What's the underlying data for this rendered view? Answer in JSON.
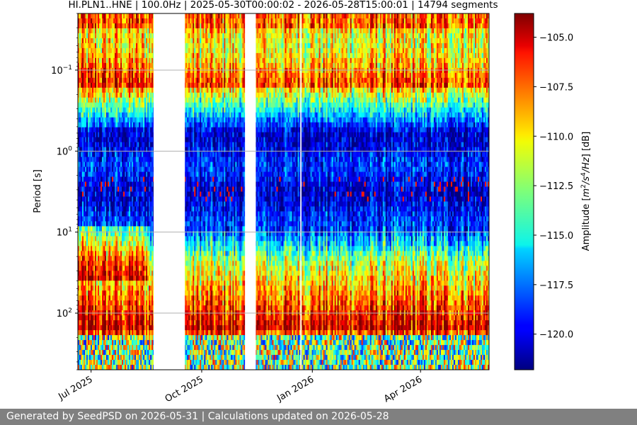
{
  "chart_data": {
    "type": "heatmap",
    "title": "HI.PLN1..HNE | 100.0Hz | 2025-05-30T00:00:02 - 2026-05-28T15:00:01 | 14794 segments",
    "ylabel": "Period [s]",
    "yscale": "log",
    "yaxis_inverted": true,
    "ylim": [
      0.02,
      500
    ],
    "y_ticks": [
      {
        "value": 0.1,
        "base": "10",
        "exp": "−1"
      },
      {
        "value": 1,
        "base": "10",
        "exp": "0"
      },
      {
        "value": 10,
        "base": "10",
        "exp": "1"
      },
      {
        "value": 100,
        "base": "10",
        "exp": "2"
      }
    ],
    "xlim": [
      "2025-06-20",
      "2026-05-28"
    ],
    "x_ticks": [
      {
        "date": "2025-07-01",
        "label": "Jul 2025"
      },
      {
        "date": "2025-10-01",
        "label": "Oct 2025"
      },
      {
        "date": "2026-01-01",
        "label": "Jan 2026"
      },
      {
        "date": "2026-04-01",
        "label": "Apr 2026"
      }
    ],
    "data_gaps": [
      {
        "start": "2025-08-22",
        "end": "2025-09-17"
      },
      {
        "start": "2025-11-06",
        "end": "2025-11-15"
      },
      {
        "start": "2025-12-22",
        "end": "2025-12-23"
      }
    ],
    "colorbar": {
      "label": "Amplitude [m²/s⁴/Hz] [dB]",
      "label_parts": {
        "pre": "Amplitude [",
        "m": "m",
        "m_exp": "2",
        "s": "/s",
        "s_exp": "4",
        "hz": "/Hz",
        "post": "] [dB]"
      },
      "colormap": "jet",
      "vmin": -121.8,
      "vmax": -103.8,
      "ticks": [
        -105.0,
        -107.5,
        -110.0,
        -112.5,
        -115.0,
        -117.5,
        -120.0
      ],
      "tick_labels": [
        "−105.0",
        "−107.5",
        "−110.0",
        "−112.5",
        "−115.0",
        "−117.5",
        "−120.0"
      ]
    },
    "grid": true
  },
  "footer": {
    "text": "Generated by SeedPSD on 2026-05-31 | Calculations updated on 2026-05-28"
  }
}
